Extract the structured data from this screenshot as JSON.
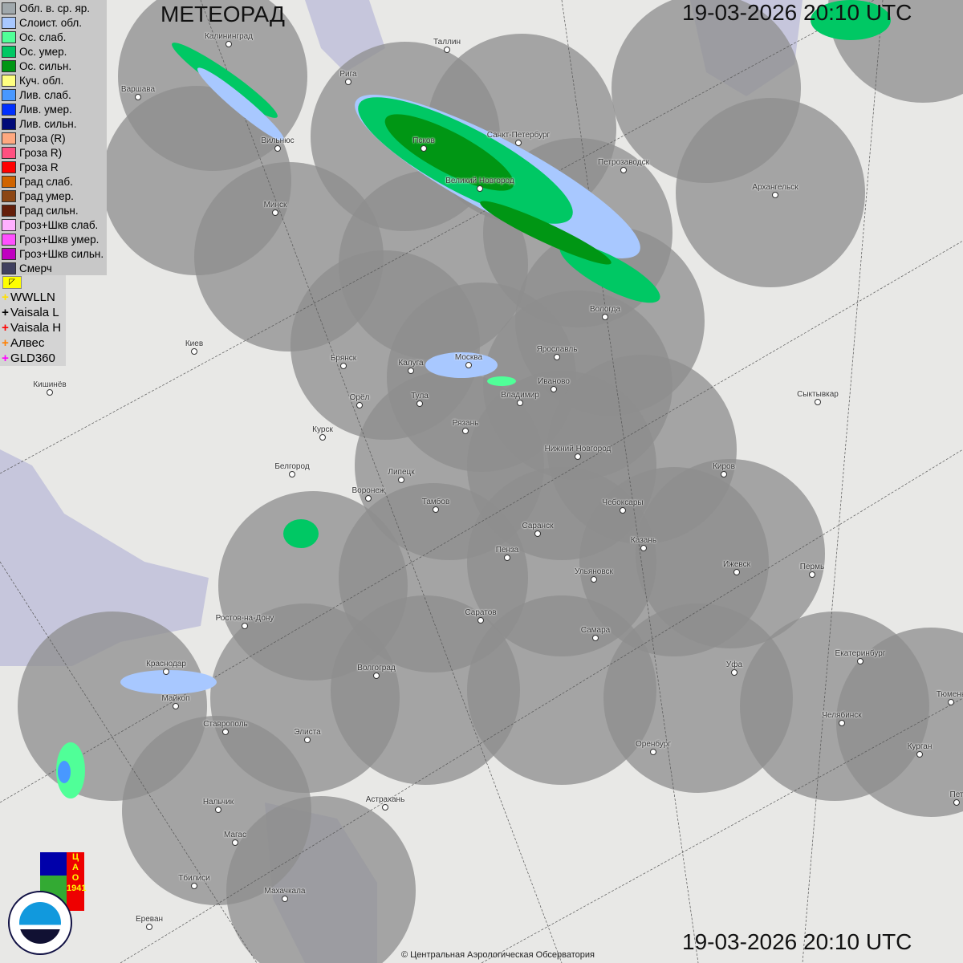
{
  "header": {
    "title": "МЕТЕОРАД",
    "timestamp_top": "19-03-2026  20:10 UTC",
    "timestamp_bottom": "19-03-2026  20:10 UTC"
  },
  "legend": [
    {
      "label": "Обл. в. ср. яр.",
      "color": "#a0a8ac"
    },
    {
      "label": "Слоист. обл.",
      "color": "#a8c8ff"
    },
    {
      "label": "Ос. слаб.",
      "color": "#50ff98"
    },
    {
      "label": "Ос. умер.",
      "color": "#00c864"
    },
    {
      "label": "Ос. сильн.",
      "color": "#009614"
    },
    {
      "label": "Куч. обл.",
      "color": "#ffff80"
    },
    {
      "label": "Лив. слаб.",
      "color": "#4898ff"
    },
    {
      "label": "Лив. умер.",
      "color": "#0030ff"
    },
    {
      "label": "Лив. сильн.",
      "color": "#000a78"
    },
    {
      "label": "Гроза (R)",
      "color": "#ffa880"
    },
    {
      "label": "Гроза R)",
      "color": "#ff5080"
    },
    {
      "label": "Гроза R",
      "color": "#ff0000"
    },
    {
      "label": "Град слаб.",
      "color": "#d06400"
    },
    {
      "label": "Град умер.",
      "color": "#8c4614"
    },
    {
      "label": "Град сильн.",
      "color": "#641e0a"
    },
    {
      "label": "Гроз+Шкв слаб.",
      "color": "#ffb0ff"
    },
    {
      "label": "Гроз+Шкв умер.",
      "color": "#ff50ff"
    },
    {
      "label": "Гроз+Шкв сильн.",
      "color": "#c000c0"
    },
    {
      "label": "Смерч",
      "color": "#404060"
    }
  ],
  "lightning_toggle_icon": "flag-icon",
  "lightning": [
    {
      "label": "WWLLN",
      "color": "#ffe000"
    },
    {
      "label": "Vaisala L",
      "color": "#000000"
    },
    {
      "label": "Vaisala H",
      "color": "#ff0000"
    },
    {
      "label": "Алвес",
      "color": "#ff8000"
    },
    {
      "label": "GLD360",
      "color": "#ff00ff"
    }
  ],
  "cities": [
    "Калининград",
    "Таллин",
    "Рига",
    "Варшава",
    "Санкт-Петербург",
    "Псков",
    "Вильнюс",
    "Петрозаводск",
    "Великий Новгород",
    "Архангельск",
    "Минск",
    "Вологда",
    "Киев",
    "Москва",
    "Ярославль",
    "Брянск",
    "Калуга",
    "Иваново",
    "Кишинёв",
    "Тула",
    "Владимир",
    "Сыктывкар",
    "Орёл",
    "Рязань",
    "Курск",
    "Нижний Новгород",
    "Киров",
    "Белгород",
    "Липецк",
    "Воронеж",
    "Тамбов",
    "Чебоксары",
    "Саранск",
    "Казань",
    "Пенза",
    "Ижевск",
    "Пермь",
    "Ульяновск",
    "Ростов-на-Дону",
    "Саратов",
    "Самара",
    "Краснодар",
    "Волгоград",
    "Уфа",
    "Екатеринбург",
    "Тюмень",
    "Майкоп",
    "Челябинск",
    "Ставрополь",
    "Элиста",
    "Оренбург",
    "Курган",
    "Астрахань",
    "Нальчик",
    "Пет",
    "Магас",
    "Тбилиси",
    "Махачкала",
    "Ереван"
  ],
  "logos": {
    "cao": "ЦАО 1941",
    "roshydromet": "РОСГИДРОМЕТ ROSHYDROMET"
  },
  "footer": {
    "copyright": "© Центральная Аэрологическая Обсерватория"
  }
}
